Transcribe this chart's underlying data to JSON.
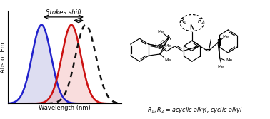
{
  "fig_width": 3.78,
  "fig_height": 1.67,
  "dpi": 100,
  "background_color": "#ffffff",
  "blue_peak": 0.33,
  "red_peak": 0.58,
  "dotted_peak": 0.7,
  "blue_color": "#2222cc",
  "blue_fill": "#aaaadd",
  "red_color": "#cc1111",
  "red_fill": "#f0aaaa",
  "dotted_color": "#111111",
  "arrow_color": "#111111",
  "xlabel": "Wavelength (nm)",
  "ylabel": "Abs or Em",
  "stokes_label": "Stokes shift",
  "ylim": [
    0,
    1.18
  ],
  "xlim": [
    0.05,
    1.0
  ],
  "sigma_blue": 0.08,
  "sigma_red": 0.08,
  "sigma_dotted": 0.085
}
